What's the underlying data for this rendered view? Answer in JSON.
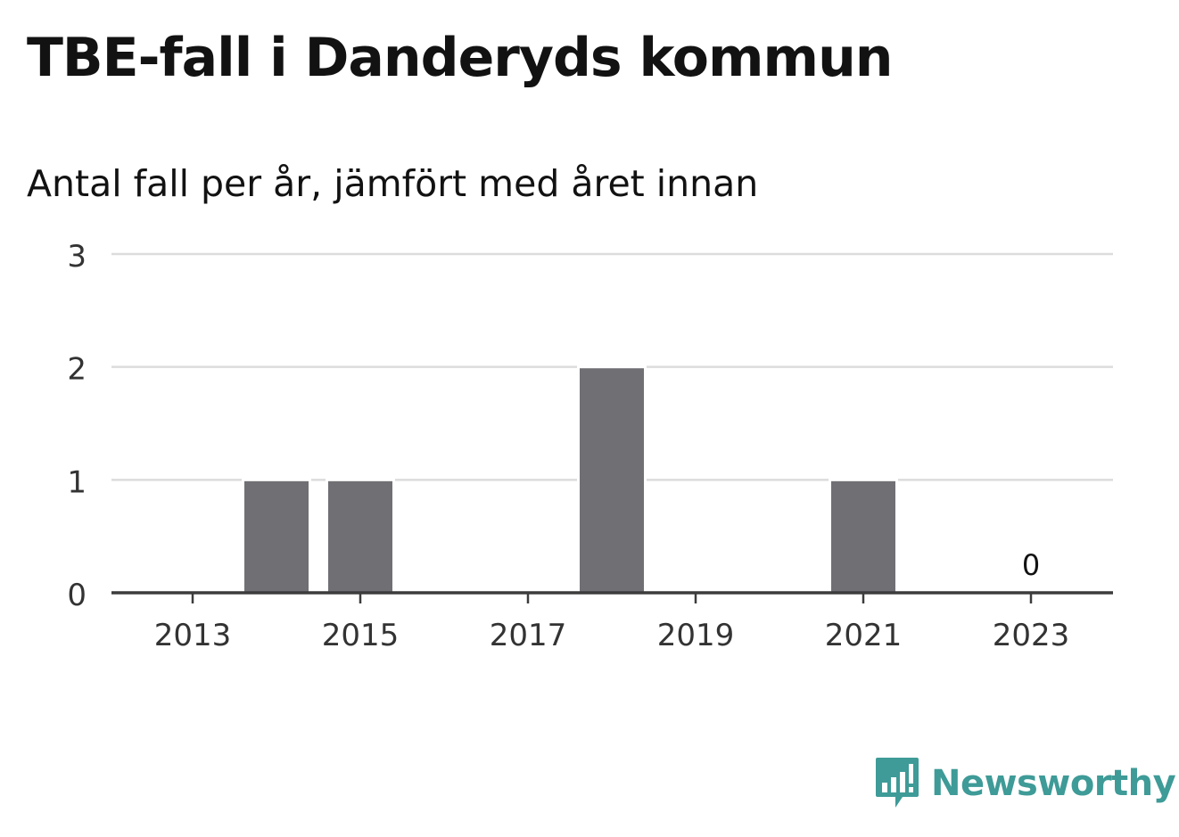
{
  "header": {
    "title": "TBE-fall i Danderyds kommun",
    "subtitle": "Antal fall per år, jämfört med året innan"
  },
  "brand": {
    "name": "Newsworthy",
    "color": "#3e9b97",
    "icon": "newsworthy-logo-icon"
  },
  "chart_data": {
    "type": "bar",
    "categories": [
      2013,
      2014,
      2015,
      2016,
      2017,
      2018,
      2019,
      2020,
      2021,
      2022,
      2023
    ],
    "values": [
      0,
      1,
      1,
      0,
      0,
      2,
      0,
      0,
      1,
      0,
      0
    ],
    "x_tick_labels": [
      "2013",
      "2015",
      "2017",
      "2019",
      "2021",
      "2023"
    ],
    "y_tick_labels": [
      "0",
      "1",
      "2",
      "3"
    ],
    "ylim": [
      0,
      3
    ],
    "grid": true,
    "bar_color": "#706f74",
    "annotations": [
      {
        "category": 2023,
        "value": 0,
        "text": "0"
      }
    ]
  }
}
